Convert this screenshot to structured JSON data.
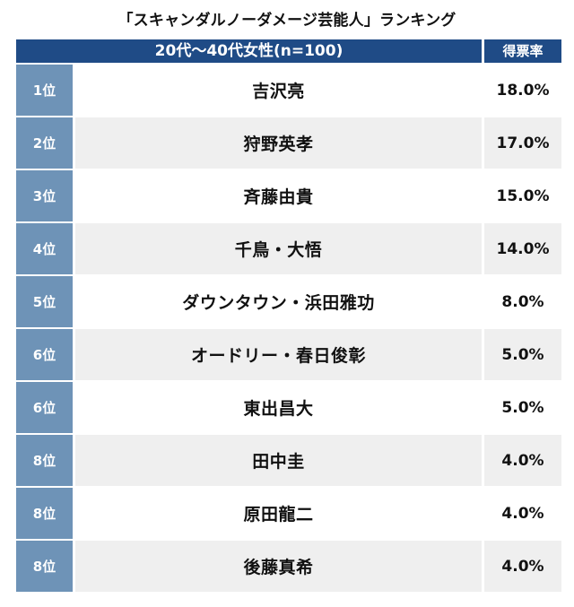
{
  "title": "「スキャンダルノーダメージ芸能人」ランキング",
  "header": {
    "group": "20代〜40代女性(n=100)",
    "rate": "得票率"
  },
  "chart_data": {
    "type": "table",
    "title": "「スキャンダルノーダメージ芸能人」ランキング",
    "columns": [
      "20代〜40代女性(n=100)",
      "得票率"
    ],
    "rows": [
      {
        "rank": "1位",
        "name": "吉沢亮",
        "rate": "18.0%"
      },
      {
        "rank": "2位",
        "name": "狩野英孝",
        "rate": "17.0%"
      },
      {
        "rank": "3位",
        "name": "斉藤由貴",
        "rate": "15.0%"
      },
      {
        "rank": "4位",
        "name": "千鳥・大悟",
        "rate": "14.0%"
      },
      {
        "rank": "5位",
        "name": "ダウンタウン・浜田雅功",
        "rate": "8.0%"
      },
      {
        "rank": "6位",
        "name": "オードリー・春日俊彰",
        "rate": "5.0%"
      },
      {
        "rank": "6位",
        "name": "東出昌大",
        "rate": "5.0%"
      },
      {
        "rank": "8位",
        "name": "田中圭",
        "rate": "4.0%"
      },
      {
        "rank": "8位",
        "name": "原田龍二",
        "rate": "4.0%"
      },
      {
        "rank": "8位",
        "name": "後藤真希",
        "rate": "4.0%"
      }
    ]
  },
  "colors": {
    "header": "#1f4b86",
    "rank_cell": "#6e93b7",
    "row_alt": "#efefef"
  }
}
